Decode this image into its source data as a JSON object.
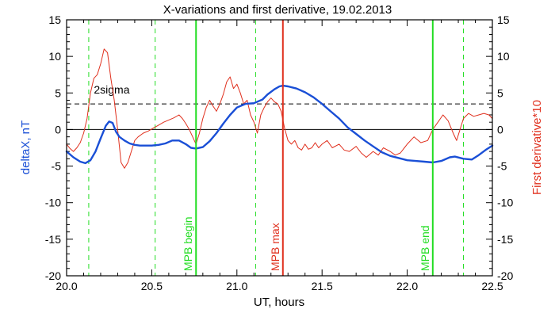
{
  "chart_data": {
    "type": "line",
    "title": "X-variations and first derivative, 19.02.2013",
    "xlabel": "UT, hours",
    "ylabel_left": "deltaX, nT",
    "ylabel_right": "First derivative*10",
    "xlim": [
      20.0,
      22.5
    ],
    "ylim": [
      -20,
      15
    ],
    "x_ticks": [
      20.0,
      20.5,
      21.0,
      21.5,
      22.0,
      22.5
    ],
    "x_tick_labels": [
      "20.0",
      "20.5",
      "21.0",
      "21.5",
      "22.0",
      "22.5"
    ],
    "y_ticks": [
      -20,
      -15,
      -10,
      -5,
      0,
      5,
      10,
      15
    ],
    "y_tick_labels": [
      "-20",
      "-15",
      "-10",
      "-5",
      "0",
      "5",
      "10",
      "15"
    ],
    "colors": {
      "deltaX": "#1a4fd6",
      "derivative": "#e0301e",
      "green_markers": "#22dd22",
      "red_marker": "#e0301e",
      "axis": "#000000"
    },
    "series": [
      {
        "key": "deltaX",
        "x": [
          20.0,
          20.04,
          20.08,
          20.11,
          20.14,
          20.17,
          20.2,
          20.23,
          20.25,
          20.27,
          20.29,
          20.31,
          20.34,
          20.37,
          20.4,
          20.43,
          20.46,
          20.5,
          20.54,
          20.58,
          20.62,
          20.66,
          20.7,
          20.73,
          20.76,
          20.8,
          20.84,
          20.88,
          20.92,
          20.96,
          21.0,
          21.05,
          21.1,
          21.15,
          21.18,
          21.22,
          21.25,
          21.27,
          21.3,
          21.35,
          21.4,
          21.45,
          21.5,
          21.55,
          21.6,
          21.65,
          21.7,
          21.75,
          21.8,
          21.85,
          21.9,
          21.95,
          22.0,
          22.05,
          22.1,
          22.15,
          22.2,
          22.25,
          22.28,
          22.33,
          22.38,
          22.42,
          22.46,
          22.5
        ],
        "y": [
          -3.0,
          -3.8,
          -4.4,
          -4.6,
          -4.2,
          -3.0,
          -1.2,
          0.5,
          1.1,
          0.9,
          -0.3,
          -1.0,
          -1.5,
          -1.9,
          -2.1,
          -2.2,
          -2.2,
          -2.2,
          -2.1,
          -1.9,
          -1.5,
          -1.5,
          -2.0,
          -2.5,
          -2.6,
          -2.4,
          -1.6,
          -0.5,
          0.8,
          2.0,
          3.0,
          3.5,
          3.6,
          4.1,
          4.8,
          5.5,
          5.9,
          6.0,
          5.9,
          5.6,
          5.1,
          4.4,
          3.5,
          2.5,
          1.5,
          0.3,
          -0.6,
          -1.5,
          -2.3,
          -3.1,
          -3.6,
          -3.9,
          -4.2,
          -4.3,
          -4.4,
          -4.5,
          -4.3,
          -3.8,
          -3.7,
          -4.0,
          -4.1,
          -3.5,
          -2.8,
          -2.2
        ]
      },
      {
        "key": "derivative",
        "x": [
          20.0,
          20.02,
          20.04,
          20.06,
          20.08,
          20.1,
          20.12,
          20.14,
          20.16,
          20.18,
          20.2,
          20.22,
          20.24,
          20.26,
          20.28,
          20.3,
          20.32,
          20.34,
          20.36,
          20.38,
          20.4,
          20.42,
          20.45,
          20.48,
          20.51,
          20.54,
          20.57,
          20.6,
          20.63,
          20.66,
          20.68,
          20.7,
          20.72,
          20.74,
          20.76,
          20.78,
          20.8,
          20.82,
          20.84,
          20.86,
          20.88,
          20.9,
          20.92,
          20.94,
          20.96,
          20.98,
          21.0,
          21.02,
          21.04,
          21.06,
          21.08,
          21.1,
          21.12,
          21.14,
          21.16,
          21.18,
          21.2,
          21.22,
          21.24,
          21.26,
          21.28,
          21.3,
          21.32,
          21.34,
          21.36,
          21.38,
          21.4,
          21.42,
          21.44,
          21.46,
          21.48,
          21.5,
          21.53,
          21.56,
          21.6,
          21.63,
          21.66,
          21.7,
          21.73,
          21.76,
          21.8,
          21.83,
          21.86,
          21.9,
          21.93,
          21.96,
          22.0,
          22.04,
          22.08,
          22.12,
          22.15,
          22.18,
          22.21,
          22.24,
          22.27,
          22.29,
          22.31,
          22.33,
          22.36,
          22.39,
          22.42,
          22.45,
          22.48,
          22.5
        ],
        "y": [
          -2.0,
          -2.6,
          -3.0,
          -2.5,
          -1.8,
          -0.5,
          1.5,
          5.0,
          7.0,
          7.5,
          9.0,
          11.0,
          10.5,
          7.0,
          4.0,
          0.0,
          -4.5,
          -5.3,
          -4.5,
          -3.0,
          -1.5,
          -1.0,
          -0.5,
          -0.2,
          0.2,
          0.6,
          1.0,
          1.3,
          1.6,
          2.0,
          1.5,
          0.8,
          0.0,
          -1.0,
          -2.0,
          -0.5,
          1.5,
          3.0,
          4.0,
          3.2,
          2.5,
          3.5,
          4.8,
          6.5,
          7.2,
          5.6,
          6.2,
          5.0,
          3.5,
          4.0,
          2.0,
          1.0,
          -0.5,
          2.0,
          3.0,
          3.8,
          4.3,
          3.8,
          3.5,
          2.5,
          0.2,
          -1.5,
          -2.0,
          -1.5,
          -2.5,
          -2.8,
          -2.0,
          -2.7,
          -2.5,
          -1.8,
          -2.5,
          -2.0,
          -1.5,
          -2.5,
          -2.0,
          -2.8,
          -3.0,
          -2.3,
          -3.2,
          -3.8,
          -3.0,
          -3.5,
          -2.5,
          -3.0,
          -3.5,
          -3.2,
          -2.0,
          -1.0,
          -1.8,
          -1.5,
          0.0,
          1.0,
          2.0,
          1.2,
          -0.5,
          -1.5,
          0.0,
          1.5,
          2.2,
          1.8,
          2.0,
          2.2,
          2.0,
          1.5
        ]
      }
    ],
    "threshold": {
      "label": "2sigma",
      "value": 3.5
    },
    "zero_line": 0,
    "dashed_green_lines": [
      20.13,
      20.52,
      21.11,
      22.33
    ],
    "markers": [
      {
        "label": "MPB begin",
        "x": 20.76,
        "color": "#22dd22"
      },
      {
        "label": "MPB max",
        "x": 21.27,
        "color": "#e0301e"
      },
      {
        "label": "MPB end",
        "x": 22.15,
        "color": "#22dd22"
      }
    ]
  }
}
